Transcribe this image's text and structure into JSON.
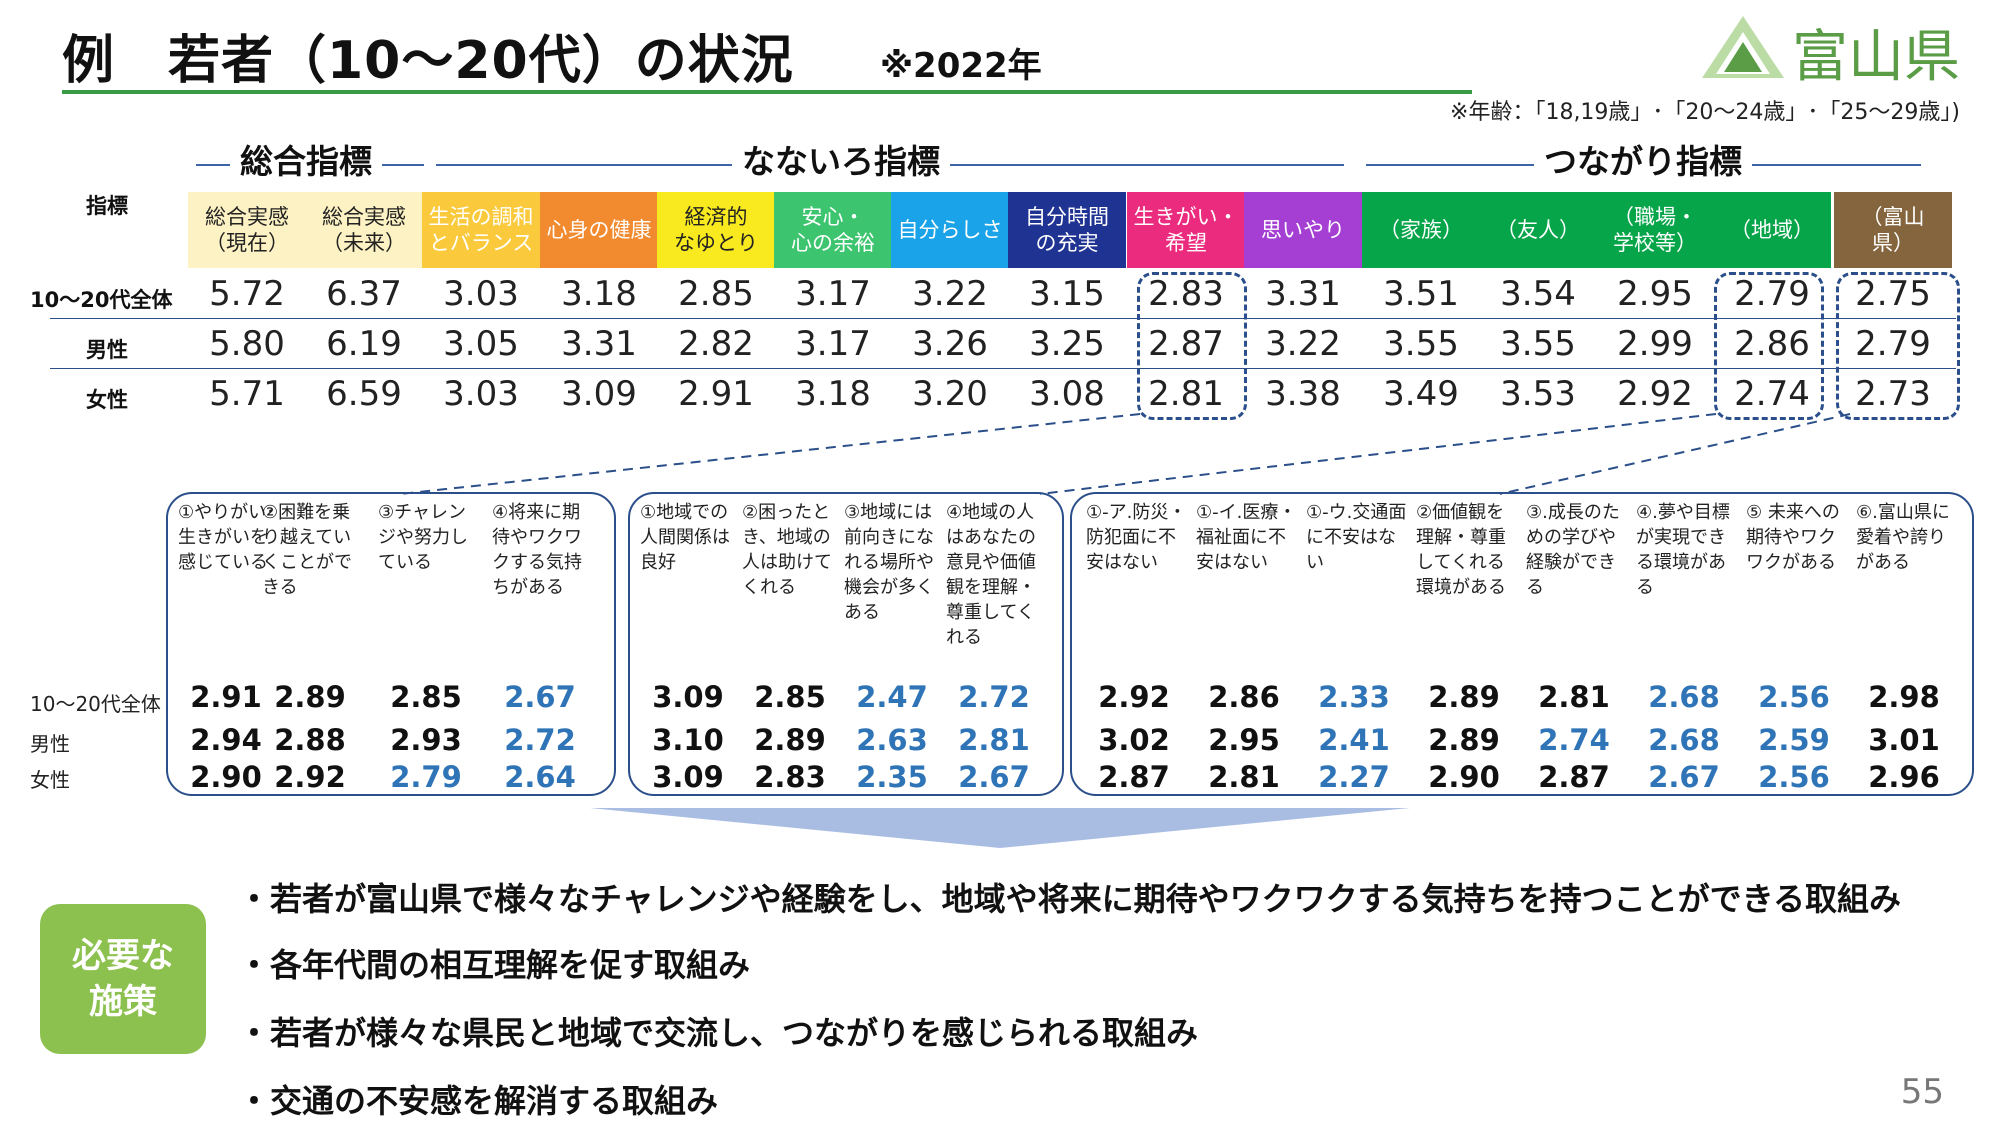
{
  "title": "例　若者（10～20代）の状況",
  "subtitle": "※2022年",
  "logo_text": "富山県",
  "note": "※年齢：「18,19歳」･「20～24歳」･「25～29歳」)",
  "groups": {
    "overall": "総合指標",
    "nanairo": "なないろ指標",
    "tsunagari": "つながり指標"
  },
  "row_header": "指標",
  "columns": [
    {
      "label": "総合実感\n（現在）",
      "bg": "#fdf2c4",
      "fg": "#222"
    },
    {
      "label": "総合実感\n（未来）",
      "bg": "#fdf2c4",
      "fg": "#222"
    },
    {
      "label": "生活の調和\nとバランス",
      "bg": "#fbca3c",
      "fg": "#ffffff"
    },
    {
      "label": "心身の健康",
      "bg": "#f28b30",
      "fg": "#ffffff"
    },
    {
      "label": "経済的\nなゆとり",
      "bg": "#f9ea1f",
      "fg": "#222"
    },
    {
      "label": "安心・\n心の余裕",
      "bg": "#3dc46e",
      "fg": "#ffffff"
    },
    {
      "label": "自分らしさ",
      "bg": "#1aa3e8",
      "fg": "#ffffff"
    },
    {
      "label": "自分時間\nの充実",
      "bg": "#1f3393",
      "fg": "#ffffff"
    },
    {
      "label": "生きがい・\n希望",
      "bg": "#ea2b7e",
      "fg": "#ffffff"
    },
    {
      "label": "思いやり",
      "bg": "#a53fd3",
      "fg": "#ffffff"
    },
    {
      "label": "（家族）",
      "bg": "#07a54a",
      "fg": "#ffffff"
    },
    {
      "label": "（友人）",
      "bg": "#07a54a",
      "fg": "#ffffff"
    },
    {
      "label": "（職場・\n学校等）",
      "bg": "#07a54a",
      "fg": "#ffffff"
    },
    {
      "label": "（地域）",
      "bg": "#07a54a",
      "fg": "#ffffff"
    },
    {
      "label": "（富山\n県）",
      "bg": "#84653e",
      "fg": "#ffffff"
    }
  ],
  "rows": [
    {
      "label": "10～20代全体",
      "values": [
        "5.72",
        "6.37",
        "3.03",
        "3.18",
        "2.85",
        "3.17",
        "3.22",
        "3.15",
        "2.83",
        "3.31",
        "3.51",
        "3.54",
        "2.95",
        "2.79",
        "2.75"
      ]
    },
    {
      "label": "男性",
      "values": [
        "5.80",
        "6.19",
        "3.05",
        "3.31",
        "2.82",
        "3.17",
        "3.26",
        "3.25",
        "2.87",
        "3.22",
        "3.55",
        "3.55",
        "2.99",
        "2.86",
        "2.79"
      ]
    },
    {
      "label": "女性",
      "values": [
        "5.71",
        "6.59",
        "3.03",
        "3.09",
        "2.91",
        "3.18",
        "3.20",
        "3.08",
        "2.81",
        "3.38",
        "3.49",
        "3.53",
        "2.92",
        "2.74",
        "2.73"
      ]
    }
  ],
  "panel1": {
    "items": [
      "①やりがい･生きがいを感じている",
      "②困難を乗り越えていくことができる",
      "③チャレンジや努力している",
      "④将来に期待やワクワクする気持ちがある"
    ],
    "rows": [
      [
        "2.91",
        "2.89",
        "2.85",
        "2.67"
      ],
      [
        "2.94",
        "2.88",
        "2.93",
        "2.72"
      ],
      [
        "2.90",
        "2.92",
        "2.79",
        "2.64"
      ]
    ]
  },
  "panel2": {
    "items": [
      "①地域での人間関係は良好",
      "②困ったとき、地域の人は助けてくれる",
      "③地域には前向きになれる場所や機会が多くある",
      "④地域の人はあなたの意見や価値観を理解・尊重してくれる"
    ],
    "rows": [
      [
        "3.09",
        "2.85",
        "2.47",
        "2.72"
      ],
      [
        "3.10",
        "2.89",
        "2.63",
        "2.81"
      ],
      [
        "3.09",
        "2.83",
        "2.35",
        "2.67"
      ]
    ]
  },
  "panel3": {
    "items": [
      "①-ア.防災・防犯面に不安はない",
      "①-イ.医療・福祉面に不安はない",
      "①-ウ.交通面に不安はない",
      "②価値観を理解・尊重してくれる環境がある",
      "③.成長のための学びや経験ができる",
      "④.夢や目標が実現できる環境がある",
      "⑤ 未来への期待やワクワクがある",
      "⑥.富山県に愛着や誇りがある"
    ],
    "rows": [
      [
        "2.92",
        "2.86",
        "2.33",
        "2.89",
        "2.81",
        "2.68",
        "2.56",
        "2.98"
      ],
      [
        "3.02",
        "2.95",
        "2.41",
        "2.89",
        "2.74",
        "2.68",
        "2.59",
        "3.01"
      ],
      [
        "2.87",
        "2.81",
        "2.27",
        "2.90",
        "2.87",
        "2.67",
        "2.56",
        "2.96"
      ]
    ]
  },
  "bottom_row_labels": [
    "10～20代全体",
    "男性",
    "女性"
  ],
  "measures_label": "必要な\n施策",
  "measures": [
    "・若者が富山県で様々なチャレンジや経験をし、地域や将来に期待やワクワクする気持ちを持つことができる取組み",
    "・各年代間の相互理解を促す取組み",
    "・若者が様々な県民と地域で交流し、つながりを感じられる取組み",
    "・交通の不安感を解消する取組み"
  ],
  "page_number": "55"
}
